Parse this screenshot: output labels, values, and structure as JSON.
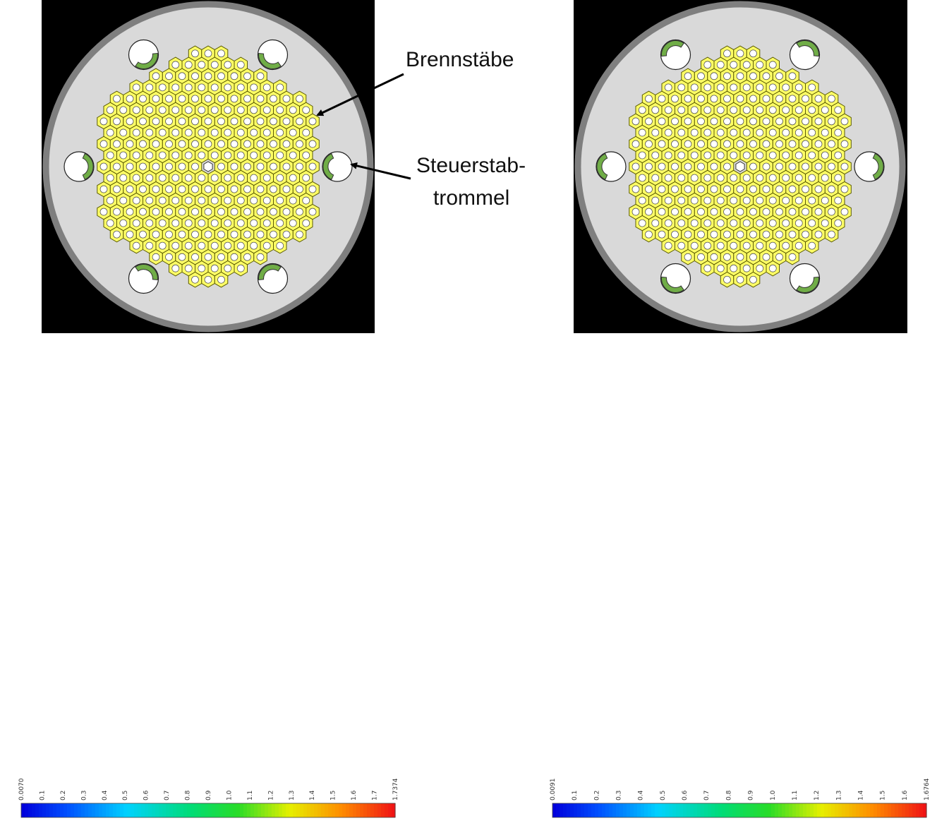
{
  "annotations": {
    "fuel_rods": "Brennstäbe",
    "control_drum_line1": "Steuerstab-",
    "control_drum_line2": "trommel"
  },
  "colors": {
    "panel_background": "#000000",
    "reactor_fill": "#d9d9d9",
    "reactor_rim": "#7f7f7f",
    "fuel_hex": "#ffff66",
    "fuel_hex_stroke": "#5a5a00",
    "drum_absorber": "#70ad47",
    "drum_circle": "#ffffff"
  },
  "geometry_views": [
    {
      "id": "drums-rotated-outward",
      "absorber_facing": "outward"
    },
    {
      "id": "drums-rotated-inward",
      "absorber_facing": "inward"
    }
  ],
  "flux_maps": [
    {
      "id": "flux-drums-outward",
      "pattern": "peaks-between-drums",
      "colorbar": {
        "min_label": "0.0070",
        "max_label": "1.7374",
        "tick_labels": [
          "0.0070",
          "0.1",
          "0.2",
          "0.3",
          "0.4",
          "0.5",
          "0.6",
          "0.7",
          "0.8",
          "0.9",
          "1.0",
          "1.1",
          "1.2",
          "1.3",
          "1.4",
          "1.5",
          "1.6",
          "1.7",
          "1.7374"
        ]
      }
    },
    {
      "id": "flux-drums-inward",
      "pattern": "isolated-peaks",
      "colorbar": {
        "min_label": "0.0091",
        "max_label": "1.6764",
        "tick_labels": [
          "0.0091",
          "0.1",
          "0.2",
          "0.3",
          "0.4",
          "0.5",
          "0.6",
          "0.7",
          "0.8",
          "0.9",
          "1.0",
          "1.1",
          "1.2",
          "1.3",
          "1.4",
          "1.5",
          "1.6",
          "1.6764"
        ]
      }
    }
  ]
}
